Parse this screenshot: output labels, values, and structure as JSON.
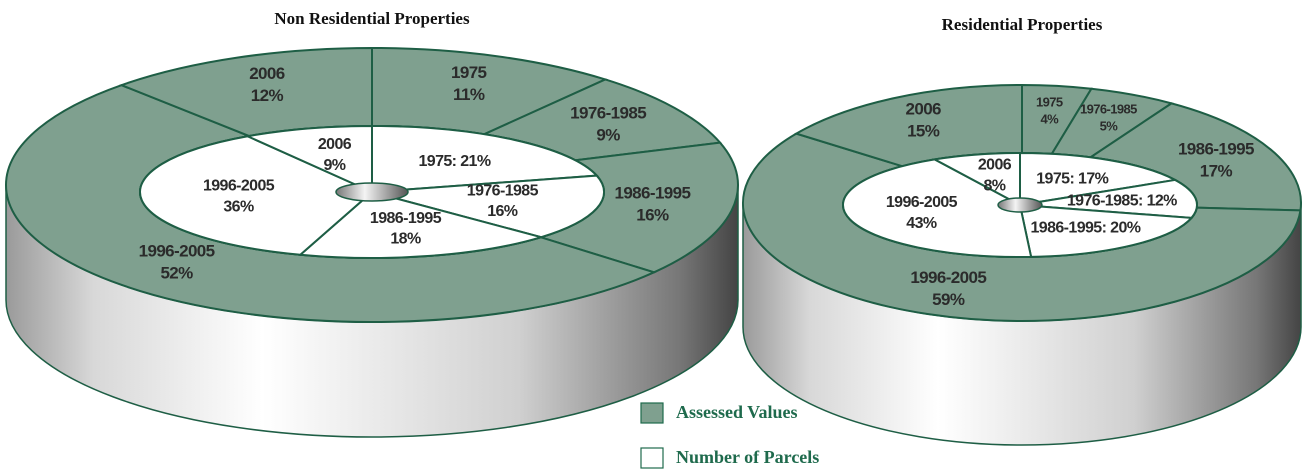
{
  "chart_data": [
    {
      "type": "donut3d",
      "title": "Non Residential Properties",
      "categories": [
        "1975",
        "1976-1985",
        "1986-1995",
        "1996-2005",
        "2006"
      ],
      "series": [
        {
          "values": [
            11,
            9,
            16,
            52,
            12
          ],
          "value_labels": [
            "11%",
            "9%",
            "16%",
            "52%",
            "12%"
          ]
        },
        {
          "values": [
            21,
            16,
            18,
            36,
            9
          ],
          "value_labels": [
            "1975: 21%",
            "16%",
            "18%",
            "36%",
            "9%"
          ]
        }
      ]
    },
    {
      "type": "donut3d",
      "title": "Residential Properties",
      "categories": [
        "1975",
        "1976-1985",
        "1986-1995",
        "1996-2005",
        "2006"
      ],
      "series": [
        {
          "values": [
            4,
            5,
            17,
            59,
            15
          ],
          "value_labels": [
            "4%",
            "5%",
            "17%",
            "59%",
            "15%"
          ]
        },
        {
          "values": [
            17,
            12,
            20,
            43,
            8
          ],
          "value_labels": [
            "1975: 17%",
            "1976-1985: 12%",
            "1986-1995: 20%",
            "43%",
            "8%"
          ]
        }
      ]
    }
  ],
  "legend": [
    {
      "name": "Assessed Values",
      "color": "#7fa08f"
    },
    {
      "name": "Number of Parcels",
      "color": "#ffffff"
    }
  ]
}
